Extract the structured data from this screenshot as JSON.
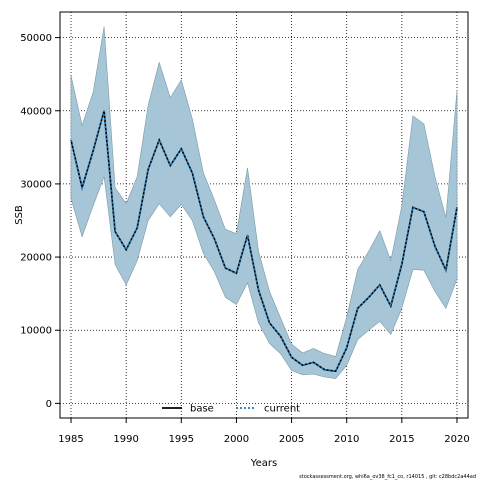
{
  "chart_data": {
    "type": "line",
    "xlabel": "Years",
    "ylabel": "SSB",
    "xlim": [
      1984,
      2021
    ],
    "ylim": [
      -2000,
      53500
    ],
    "x_ticks": [
      1985,
      1990,
      1995,
      2000,
      2005,
      2010,
      2015,
      2020
    ],
    "y_ticks": [
      0,
      10000,
      20000,
      30000,
      40000,
      50000
    ],
    "grid": true,
    "legend_position": "bottom-center",
    "x": [
      1985,
      1986,
      1987,
      1988,
      1989,
      1990,
      1991,
      1992,
      1993,
      1994,
      1995,
      1996,
      1997,
      1998,
      1999,
      2000,
      2001,
      2002,
      2003,
      2004,
      2005,
      2006,
      2007,
      2008,
      2009,
      2010,
      2011,
      2012,
      2013,
      2014,
      2015,
      2016,
      2017,
      2018,
      2019,
      2020
    ],
    "band": {
      "name": "uncertainty interval",
      "color": "#a6c5d6",
      "lower": [
        28000,
        22800,
        27000,
        31000,
        19000,
        16200,
        19500,
        25000,
        27300,
        25500,
        27200,
        25000,
        20500,
        18000,
        14500,
        13500,
        16500,
        11000,
        8200,
        6800,
        4500,
        3900,
        4000,
        3600,
        3400,
        5200,
        8700,
        10000,
        11200,
        9400,
        13000,
        18300,
        18200,
        15300,
        13000,
        17000
      ],
      "upper": [
        44800,
        38000,
        42500,
        51500,
        29500,
        27300,
        31000,
        40800,
        46600,
        41800,
        44200,
        38900,
        31500,
        27800,
        23800,
        23200,
        32200,
        20800,
        15300,
        11700,
        8100,
        6900,
        7500,
        6800,
        6400,
        11800,
        18300,
        20800,
        23600,
        19500,
        27000,
        39300,
        38200,
        31000,
        25400,
        42800
      ]
    },
    "series": [
      {
        "name": "base",
        "color": "#000000",
        "dash": "solid",
        "values": [
          36000,
          29500,
          34500,
          40000,
          23500,
          21000,
          24000,
          32000,
          36000,
          32500,
          34800,
          31500,
          25500,
          22500,
          18500,
          17800,
          23000,
          15500,
          11000,
          9200,
          6300,
          5200,
          5600,
          4600,
          4400,
          7600,
          13000,
          14500,
          16200,
          13300,
          19000,
          26800,
          26200,
          21500,
          18200,
          26800
        ]
      },
      {
        "name": "current",
        "color": "#1f77b4",
        "dash": "dotted",
        "values": [
          36000,
          29500,
          34500,
          40000,
          23500,
          21000,
          24000,
          32000,
          36000,
          32500,
          34800,
          31500,
          25500,
          22500,
          18500,
          17800,
          23000,
          15500,
          11000,
          9200,
          6300,
          5200,
          5600,
          4600,
          4400,
          7600,
          13000,
          14500,
          16200,
          13300,
          19000,
          26800,
          26200,
          21500,
          18200,
          26800
        ]
      }
    ]
  },
  "footer": "stockassessment.org, whi6a_ov38_fc1_co, r14015 , git: c28bdc2a44ad"
}
